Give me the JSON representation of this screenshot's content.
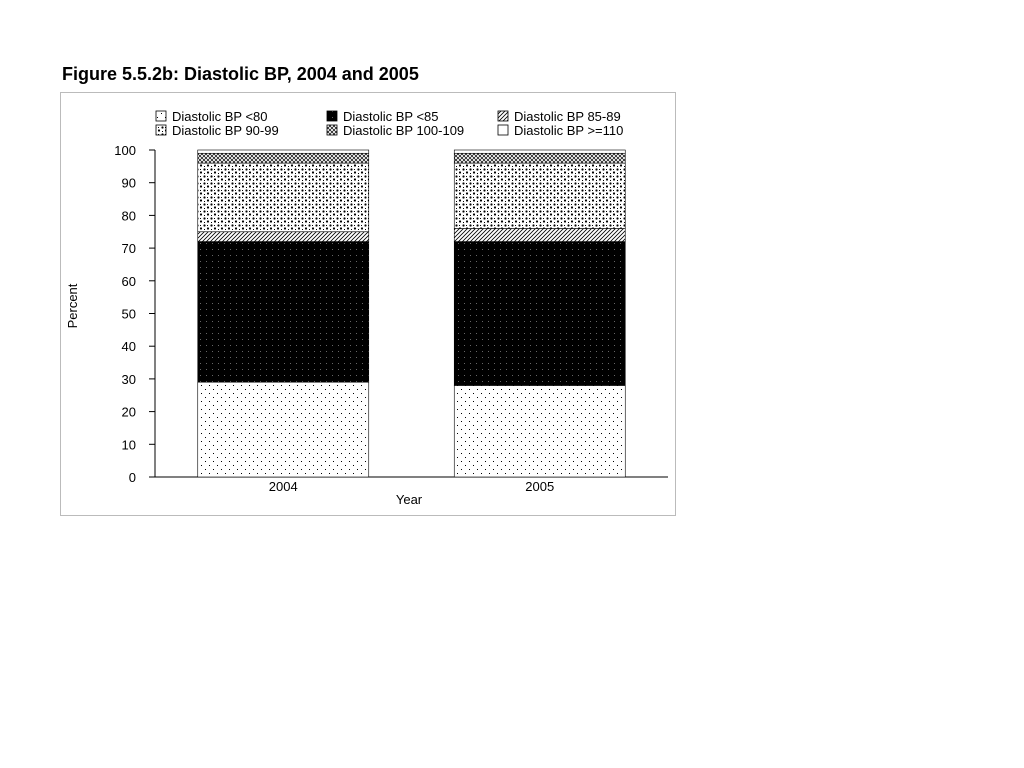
{
  "figure": {
    "title": "Figure 5.5.2b: Diastolic BP, 2004 and 2005"
  },
  "chart_data": {
    "type": "bar",
    "stacked": true,
    "xlabel": "Year",
    "ylabel": "Percent",
    "ylim": [
      0,
      100
    ],
    "yticks": [
      0,
      10,
      20,
      30,
      40,
      50,
      60,
      70,
      80,
      90,
      100
    ],
    "categories": [
      "2004",
      "2005"
    ],
    "grid": false,
    "legend_position": "top",
    "series": [
      {
        "name": "Diastolic BP <80",
        "pattern": "sparse-dots",
        "values": [
          29,
          28
        ]
      },
      {
        "name": "Diastolic BP <85",
        "pattern": "solid-black",
        "values": [
          43,
          44
        ]
      },
      {
        "name": "Diastolic BP 85-89",
        "pattern": "diagonal",
        "values": [
          3,
          4
        ]
      },
      {
        "name": "Diastolic BP 90-99",
        "pattern": "dense-dots",
        "values": [
          21,
          20
        ]
      },
      {
        "name": "Diastolic BP 100-109",
        "pattern": "crosshatch",
        "values": [
          3,
          3
        ]
      },
      {
        "name": "Diastolic BP >=110",
        "pattern": "white",
        "values": [
          1,
          1
        ]
      }
    ]
  }
}
